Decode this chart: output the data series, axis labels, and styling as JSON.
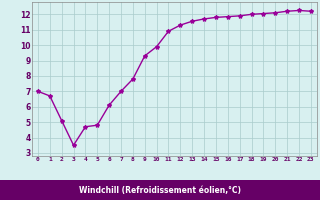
{
  "x": [
    0,
    1,
    2,
    3,
    4,
    5,
    6,
    7,
    8,
    9,
    10,
    11,
    12,
    13,
    14,
    15,
    16,
    17,
    18,
    19,
    20,
    21,
    22,
    23
  ],
  "y": [
    7.0,
    6.7,
    5.1,
    3.5,
    4.7,
    4.8,
    6.1,
    7.0,
    7.8,
    9.3,
    9.9,
    10.9,
    11.3,
    11.55,
    11.7,
    11.8,
    11.85,
    11.9,
    12.0,
    12.05,
    12.1,
    12.2,
    12.25,
    12.2
  ],
  "line_color": "#990099",
  "marker": "*",
  "marker_size": 3,
  "bg_color": "#d8f0f0",
  "xlabel": "Windchill (Refroidissement éolien,°C)",
  "xlabel_color": "#ffffff",
  "xlabel_bg": "#660066",
  "ylabel_ticks": [
    3,
    4,
    5,
    6,
    7,
    8,
    9,
    10,
    11,
    12
  ],
  "xlim": [
    -0.5,
    23.5
  ],
  "ylim": [
    2.8,
    12.8
  ],
  "tick_label_color": "#660066",
  "grid_major_color": "#aacccc",
  "line_width": 1.0
}
